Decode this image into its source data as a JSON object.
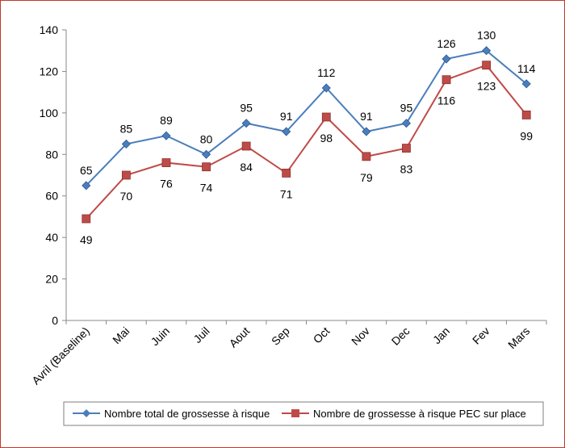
{
  "chart_data": {
    "type": "line",
    "categories": [
      "Avril (Baseline)",
      "Mai",
      "Juin",
      "Juil",
      "Aout",
      "Sep",
      "Oct",
      "Nov",
      "Dec",
      "Jan",
      "Fev",
      "Mars"
    ],
    "series": [
      {
        "name": "Nombre total de grossesse à risque",
        "values": [
          65,
          85,
          89,
          80,
          95,
          91,
          112,
          91,
          95,
          126,
          130,
          114
        ],
        "color": "#4a7ebb",
        "marker": "diamond"
      },
      {
        "name": "Nombre de grossesse à risque PEC sur place",
        "values": [
          49,
          70,
          76,
          74,
          84,
          71,
          98,
          79,
          83,
          116,
          123,
          99
        ],
        "color": "#be4b48",
        "marker": "square"
      }
    ],
    "ylim": [
      0,
      140
    ],
    "yticks": [
      0,
      20,
      40,
      60,
      80,
      100,
      120,
      140
    ],
    "grid": false,
    "legend": "bottom"
  }
}
